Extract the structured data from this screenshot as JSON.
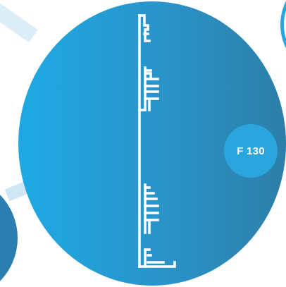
{
  "badge": {
    "label": "F 130"
  },
  "colors": {
    "circle_start": "#1ea9e4",
    "circle_end": "#2c7fa8",
    "badge": "#2aa5de",
    "profile_stroke": "#ffffff"
  },
  "icons": {
    "profile": "extrusion-profile-icon"
  }
}
